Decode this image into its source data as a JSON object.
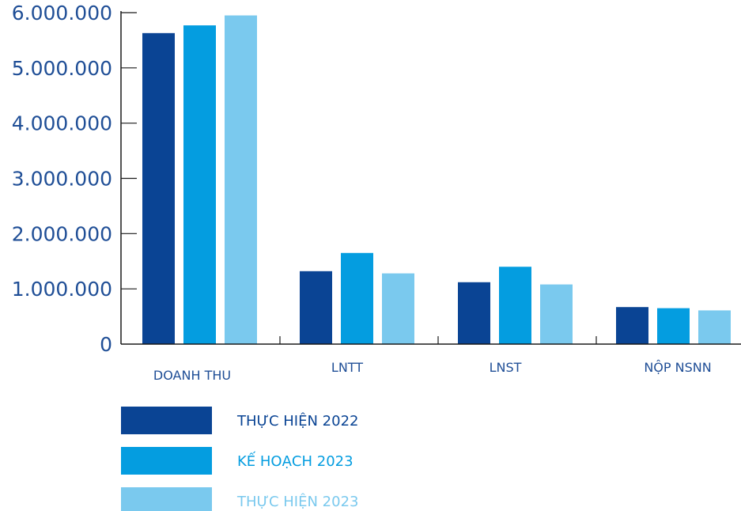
{
  "chart_data": {
    "type": "bar",
    "categories": [
      "DOANH THU",
      "LNTT",
      "LNST",
      "NỘP NSNN"
    ],
    "yticks": [
      {
        "value": 0,
        "label": "0"
      },
      {
        "value": 1000000,
        "label": "1.000.000"
      },
      {
        "value": 2000000,
        "label": "2.000.000"
      },
      {
        "value": 3000000,
        "label": "3.000.000"
      },
      {
        "value": 4000000,
        "label": "4.000.000"
      },
      {
        "value": 5000000,
        "label": "5.000.000"
      },
      {
        "value": 6000000,
        "label": "6.000.000"
      }
    ],
    "ylim": [
      0,
      6000000
    ],
    "series": [
      {
        "name": "THỰC HIỆN 2022",
        "color": "#0a4494",
        "values": [
          5630000,
          1320000,
          1120000,
          670000
        ]
      },
      {
        "name": "KẾ HOẠCH 2023",
        "color": "#049de0",
        "values": [
          5770000,
          1650000,
          1400000,
          650000
        ]
      },
      {
        "name": "THỰC HIỆN 2023",
        "color": "#7ac9ee",
        "values": [
          5950000,
          1280000,
          1080000,
          610000
        ]
      }
    ],
    "legend_position": "bottom-left"
  }
}
